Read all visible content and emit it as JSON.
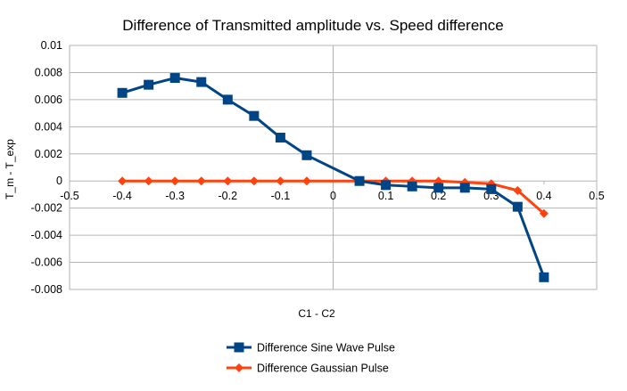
{
  "chart_data": {
    "type": "line",
    "title": "Difference of Transmitted amplitude vs. Speed difference",
    "xlabel": "C1 - C2",
    "ylabel": "T_m - T_exp",
    "xlim": [
      -0.5,
      0.5
    ],
    "ylim": [
      -0.008,
      0.01
    ],
    "x_ticks": [
      "-0.5",
      "-0.4",
      "-0.3",
      "-0.2",
      "-0.1",
      "0",
      "0.1",
      "0.2",
      "0.3",
      "0.4",
      "0.5"
    ],
    "y_ticks": [
      "0.01",
      "0.008",
      "0.006",
      "0.004",
      "0.002",
      "0",
      "-0.002",
      "-0.004",
      "-0.006",
      "-0.008"
    ],
    "grid": "horizontal",
    "legend_position": "bottom",
    "series": [
      {
        "name": "Difference Sine Wave Pulse",
        "color": "#004586",
        "marker": "square",
        "x": [
          -0.4,
          -0.35,
          -0.3,
          -0.25,
          -0.2,
          -0.15,
          -0.1,
          -0.05,
          0.05,
          0.1,
          0.15,
          0.2,
          0.25,
          0.3,
          0.35,
          0.4
        ],
        "y": [
          0.0065,
          0.0071,
          0.0076,
          0.0073,
          0.006,
          0.0048,
          0.0032,
          0.0019,
          0.0,
          -0.0003,
          -0.0004,
          -0.0005,
          -0.0005,
          -0.0006,
          -0.0019,
          -0.0071
        ]
      },
      {
        "name": "Difference Gaussian Pulse",
        "color": "#ff420e",
        "marker": "diamond",
        "x": [
          -0.4,
          -0.35,
          -0.3,
          -0.25,
          -0.2,
          -0.15,
          -0.1,
          -0.05,
          0.05,
          0.1,
          0.15,
          0.2,
          0.25,
          0.3,
          0.35,
          0.4
        ],
        "y": [
          0.0,
          0.0,
          0.0,
          0.0,
          0.0,
          0.0,
          0.0,
          0.0,
          0.0,
          0.0,
          0.0,
          0.0,
          -0.0001,
          -0.0002,
          -0.0007,
          -0.0024
        ]
      }
    ]
  }
}
